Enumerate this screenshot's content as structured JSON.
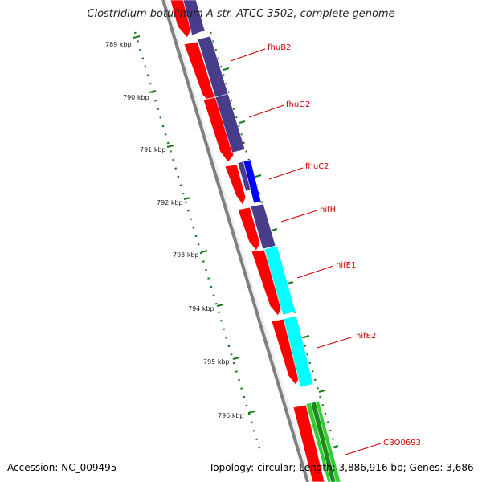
{
  "title": "Clostridium botulinum A str. ATCC 3502, complete genome",
  "footer": {
    "accession": "Accession: NC_009495",
    "summary": "Topology: circular; Length: 3,886,916 bp; Genes: 3,686"
  },
  "colors": {
    "backbone": "#808080",
    "cds_forward": "#ff0000",
    "cds_feature_dark": "#483d8b",
    "cds_feature_blue": "#0000ff",
    "cds_feature_cyan": "#00ffff",
    "cds_feature_green": "#32cd32",
    "label": "#cc0000",
    "scale": "#1a7a1a"
  },
  "scale_labels": [
    "789 kbp",
    "790 kbp",
    "791 kbp",
    "792 kbp",
    "793 kbp",
    "794 kbp",
    "795 kbp",
    "796 kbp"
  ],
  "gene_labels": [
    "fhuB2",
    "fhuG2",
    "fhuC2",
    "nifH",
    "nifE1",
    "nifE2",
    "CBO0693"
  ]
}
